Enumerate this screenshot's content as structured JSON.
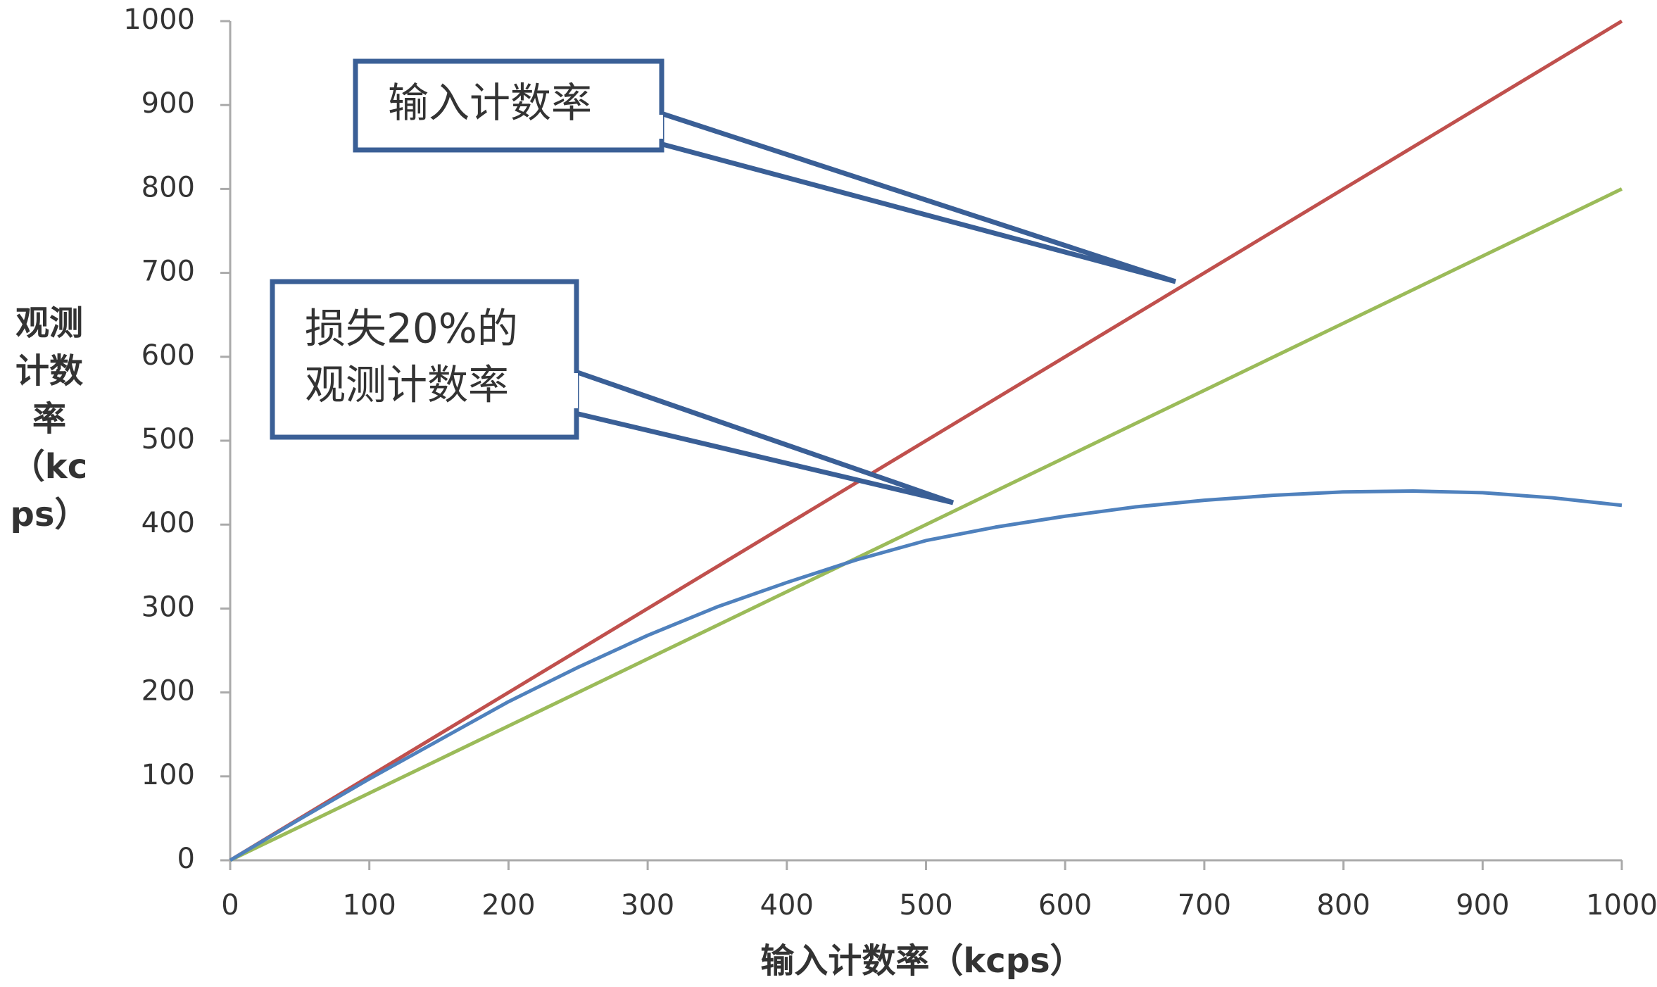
{
  "chart_data": {
    "type": "line",
    "x_label": "输入计数率（kcps）",
    "y_label": "观测计数率（kcps）",
    "x": [
      0,
      50,
      100,
      150,
      200,
      250,
      300,
      350,
      400,
      450,
      500,
      550,
      600,
      650,
      700,
      750,
      800,
      850,
      900,
      950,
      1000
    ],
    "series": [
      {
        "color": "#c0504d",
        "values": [
          0,
          50,
          100,
          150,
          200,
          250,
          300,
          350,
          400,
          450,
          500,
          550,
          600,
          650,
          700,
          750,
          800,
          850,
          900,
          950,
          1000
        ]
      },
      {
        "color": "#9bbb59",
        "values": [
          0,
          40,
          80,
          120,
          160,
          200,
          240,
          280,
          320,
          360,
          400,
          440,
          480,
          520,
          560,
          600,
          640,
          680,
          720,
          760,
          800
        ]
      },
      {
        "color": "#4f81bd",
        "values": [
          0,
          49,
          97,
          143,
          189,
          230,
          268,
          302,
          331,
          358,
          381,
          397,
          410,
          421,
          429,
          435,
          439,
          440,
          438,
          432,
          423
        ]
      }
    ],
    "xlim": [
      0,
      1000
    ],
    "xticks": [
      0,
      100,
      200,
      300,
      400,
      500,
      600,
      700,
      800,
      900,
      1000
    ],
    "ylim": [
      0,
      1000
    ],
    "yticks": [
      0,
      100,
      200,
      300,
      400,
      500,
      600,
      700,
      800,
      900,
      1000
    ],
    "grid": false,
    "annotations": [
      {
        "lines": [
          "输入计数率"
        ]
      },
      {
        "lines": [
          "损失20%的",
          "观测计数率"
        ]
      }
    ]
  }
}
